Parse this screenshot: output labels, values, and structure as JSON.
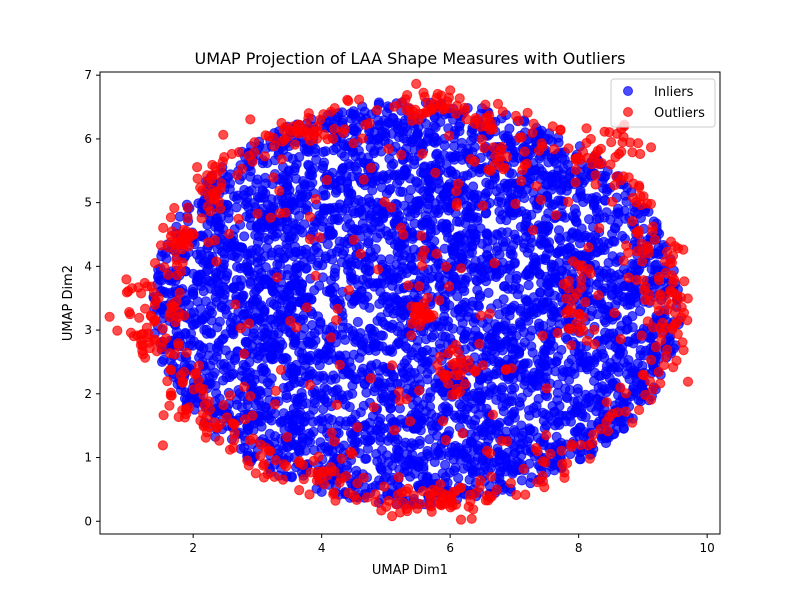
{
  "chart_data": {
    "type": "scatter",
    "title": "UMAP Projection of LAA Shape Measures with Outliers",
    "xlabel": "UMAP Dim1",
    "ylabel": "UMAP Dim2",
    "xlim": [
      0.55,
      10.2
    ],
    "ylim": [
      -0.2,
      7.05
    ],
    "xticks": [
      2,
      4,
      6,
      8,
      10
    ],
    "yticks": [
      0,
      1,
      2,
      3,
      4,
      5,
      6,
      7
    ],
    "grid": false,
    "legend_position": "top-right",
    "series": [
      {
        "name": "Inliers",
        "color": "#0000ff",
        "alpha": 0.7,
        "description_points": "approx. 4500 points filling a roughly elliptical cloud spanning x 1.1–9.7, y 0.2–6.8"
      },
      {
        "name": "Outliers",
        "color": "#ff0000",
        "alpha": 0.7,
        "description_points": "approx. 650 points, concentrated along the cloud boundary with interior clusters near (5.6, 3.2), (6.1, 2.3), (8.0, 3.3), (1.8, 4.4)"
      }
    ],
    "legend": [
      {
        "label": "Inliers",
        "color": "#0000ff"
      },
      {
        "label": "Outliers",
        "color": "#ff0000"
      }
    ],
    "blob": {
      "center": [
        5.4,
        3.35
      ],
      "rx": 4.25,
      "ry_top": 3.3,
      "ry_bottom": 3.15,
      "rx_left": 4.1
    },
    "outlier_clusters": [
      {
        "x": 1.2,
        "y": 3.1,
        "n": 40,
        "sx": 0.18,
        "sy": 0.3
      },
      {
        "x": 1.85,
        "y": 4.45,
        "n": 14,
        "sx": 0.08,
        "sy": 0.08
      },
      {
        "x": 2.3,
        "y": 5.25,
        "n": 18,
        "sx": 0.1,
        "sy": 0.18
      },
      {
        "x": 3.7,
        "y": 6.1,
        "n": 30,
        "sx": 0.35,
        "sy": 0.12
      },
      {
        "x": 5.65,
        "y": 6.55,
        "n": 22,
        "sx": 0.25,
        "sy": 0.12
      },
      {
        "x": 8.6,
        "y": 5.9,
        "n": 26,
        "sx": 0.3,
        "sy": 0.2
      },
      {
        "x": 9.35,
        "y": 3.5,
        "n": 30,
        "sx": 0.18,
        "sy": 0.55
      },
      {
        "x": 5.6,
        "y": 3.2,
        "n": 30,
        "sx": 0.12,
        "sy": 0.15
      },
      {
        "x": 6.1,
        "y": 2.35,
        "n": 25,
        "sx": 0.18,
        "sy": 0.2
      },
      {
        "x": 8.0,
        "y": 3.3,
        "n": 28,
        "sx": 0.18,
        "sy": 0.25
      },
      {
        "x": 6.0,
        "y": 0.35,
        "n": 35,
        "sx": 0.4,
        "sy": 0.15
      },
      {
        "x": 3.9,
        "y": 0.8,
        "n": 18,
        "sx": 0.3,
        "sy": 0.1
      },
      {
        "x": 1.8,
        "y": 1.8,
        "n": 16,
        "sx": 0.15,
        "sy": 0.25
      },
      {
        "x": 6.6,
        "y": 5.7,
        "n": 18,
        "sx": 0.3,
        "sy": 0.2
      }
    ]
  }
}
